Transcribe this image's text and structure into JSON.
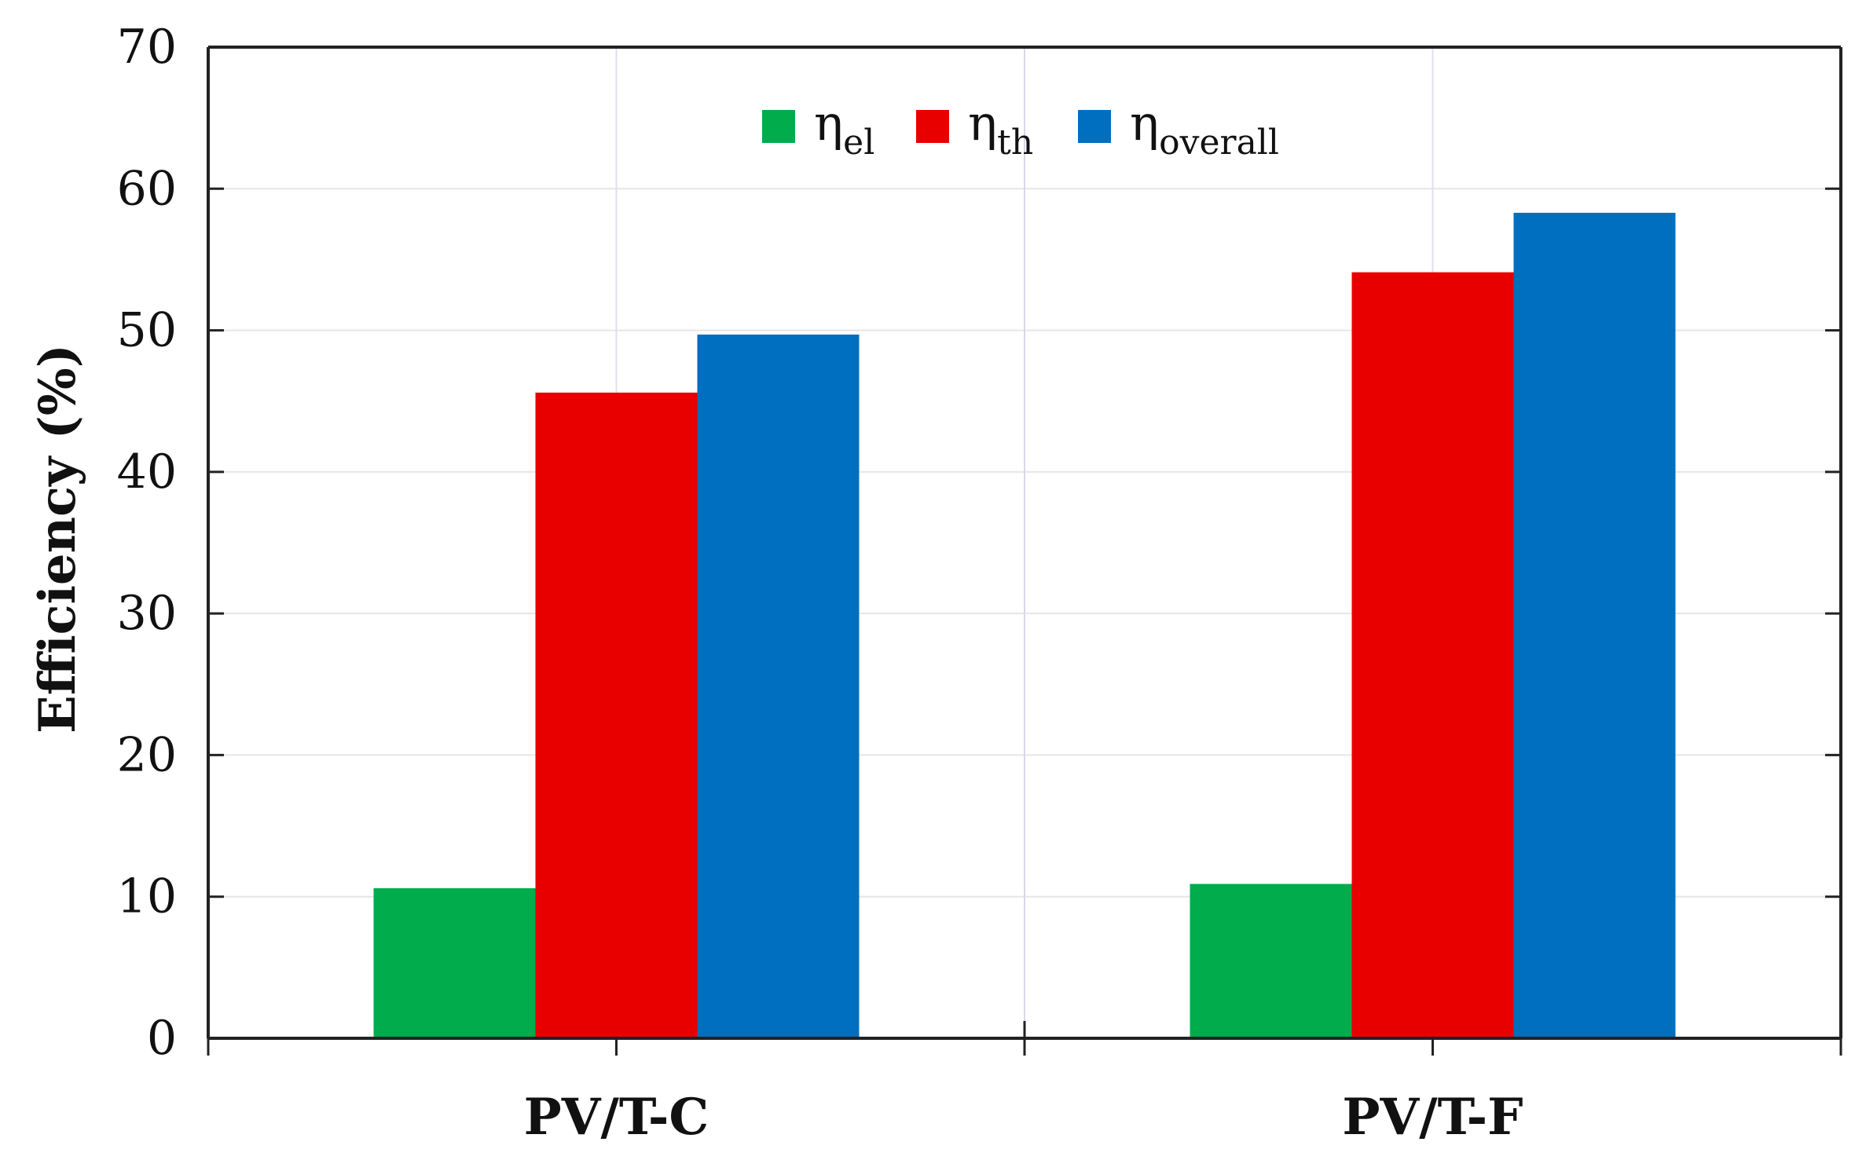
{
  "chart_data": {
    "type": "bar",
    "title": "",
    "xlabel": "",
    "ylabel": "Efficiency (%)",
    "ylim": [
      0,
      70
    ],
    "yticks": [
      0,
      10,
      20,
      30,
      40,
      50,
      60,
      70
    ],
    "categories": [
      "PV/T-C",
      "PV/T-F"
    ],
    "grid": true,
    "legend_position": "top-center",
    "series": [
      {
        "name": "η_el",
        "symbol": "η",
        "subscript": "el",
        "color": "#00AC4C",
        "values": [
          10.6,
          10.9
        ]
      },
      {
        "name": "η_th",
        "symbol": "η",
        "subscript": "th",
        "color": "#E80000",
        "values": [
          45.6,
          54.1
        ]
      },
      {
        "name": "η_overall",
        "symbol": "η",
        "subscript": "overall",
        "color": "#006FC0",
        "values": [
          49.7,
          58.3
        ]
      }
    ]
  }
}
